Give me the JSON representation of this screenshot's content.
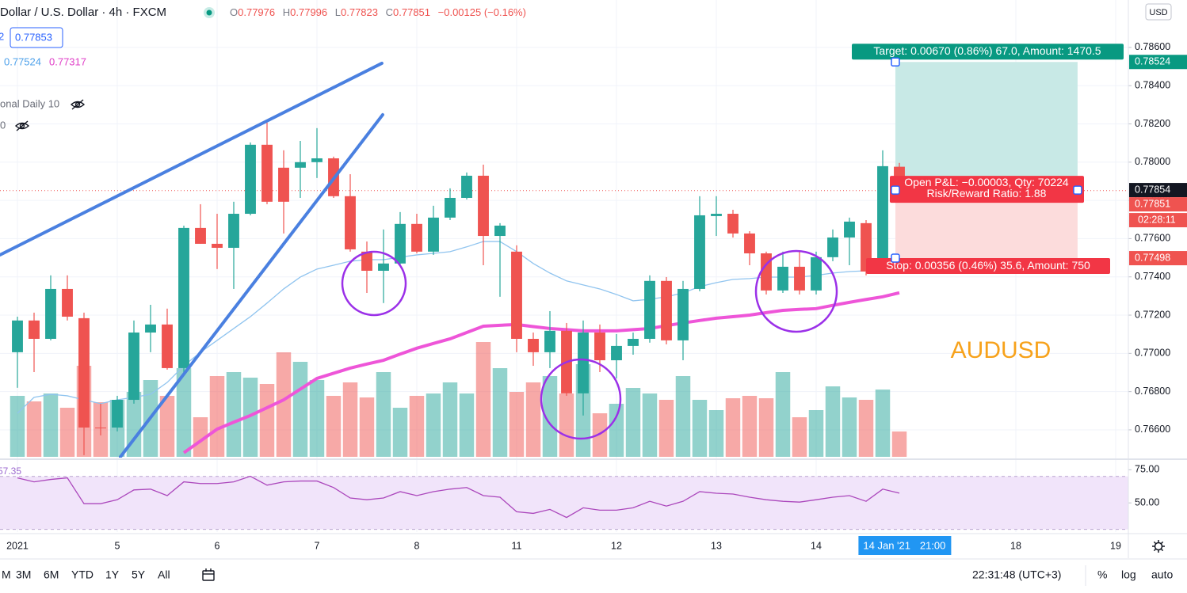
{
  "header": {
    "symbol": "Dollar / U.S. Dollar · 4h · FXCM",
    "ohlc_keys": [
      "O",
      "H",
      "L",
      "C"
    ],
    "change": "−0.00125 (−0.16%)"
  },
  "legend": {
    "prefix": "2",
    "price_box": "0.77853",
    "ma_value": "0.77524",
    "study_1": "onal Daily 10",
    "study_2": "0"
  },
  "chart_data": [
    {
      "type": "candlestick",
      "title": "AUDUSD",
      "currency": "USD",
      "up_color": "#26a69a",
      "down_color": "#ef5350",
      "xlim": [
        -1.0476,
        66.762
      ],
      "xticks": [
        {
          "value": 0,
          "label": "2021"
        },
        {
          "value": 6,
          "label": "5"
        },
        {
          "value": 12,
          "label": "6"
        },
        {
          "value": 18,
          "label": "7"
        },
        {
          "value": 24,
          "label": "8"
        },
        {
          "value": 30,
          "label": "11"
        },
        {
          "value": 36,
          "label": "12"
        },
        {
          "value": 42,
          "label": "13"
        },
        {
          "value": 48,
          "label": "14"
        },
        {
          "value": 60,
          "label": "18"
        },
        {
          "value": 66,
          "label": "19"
        }
      ],
      "ylim": [
        0.76459,
        0.78848
      ],
      "yticks": [
        {
          "value": 0.766,
          "label": "0.76600"
        },
        {
          "value": 0.768,
          "label": "0.76800"
        },
        {
          "value": 0.77,
          "label": "0.77000"
        },
        {
          "value": 0.772,
          "label": "0.77200"
        },
        {
          "value": 0.774,
          "label": "0.77400"
        },
        {
          "value": 0.776,
          "label": "0.77600"
        },
        {
          "value": 0.778,
          "label": "0.77800"
        },
        {
          "value": 0.78,
          "label": "0.78000"
        },
        {
          "value": 0.782,
          "label": "0.78200"
        },
        {
          "value": 0.784,
          "label": "0.78400"
        },
        {
          "value": 0.786,
          "label": "0.78600"
        }
      ],
      "grid": true,
      "open": [
        0.77006,
        0.77172,
        0.77076,
        0.77337,
        0.77184,
        0.76612,
        0.76612,
        0.76757,
        0.77109,
        0.77151,
        0.76923,
        0.77656,
        0.77573,
        0.77552,
        0.7773,
        0.78091,
        0.77971,
        0.77971,
        0.78,
        0.7802,
        0.77822,
        0.77532,
        0.77432,
        0.7747,
        0.77677,
        0.77532,
        0.7771,
        0.77813,
        0.77929,
        0.77614,
        0.77532,
        0.77076,
        0.77006,
        0.77118,
        0.76791,
        0.77109,
        0.76964,
        0.77039,
        0.77076,
        0.77379,
        0.77068,
        0.77337,
        0.77718,
        0.7773,
        0.77627,
        0.77523,
        0.77329,
        0.77453,
        0.77329,
        0.77503,
        0.77606,
        0.77681,
        0.77428,
        0.77976
      ],
      "high": [
        0.77192,
        0.77213,
        0.77408,
        0.77408,
        0.77213,
        0.76737,
        0.76778,
        0.77172,
        0.77254,
        0.77234,
        0.77668,
        0.7778,
        0.7773,
        0.77793,
        0.78103,
        0.78207,
        0.78062,
        0.78111,
        0.78178,
        0.78029,
        0.77937,
        0.77585,
        0.77648,
        0.77739,
        0.7773,
        0.77772,
        0.77863,
        0.77946,
        0.77987,
        0.77681,
        0.77565,
        0.77109,
        0.77221,
        0.77159,
        0.77172,
        0.77151,
        0.77101,
        0.77109,
        0.77408,
        0.77399,
        0.77379,
        0.77822,
        0.77822,
        0.77751,
        0.77639,
        0.77532,
        0.77532,
        0.77532,
        0.77532,
        0.77648,
        0.7771,
        0.77697,
        0.78062,
        0.77996
      ],
      "low": [
        0.7682,
        0.76902,
        0.77068,
        0.77172,
        0.76468,
        0.76571,
        0.76592,
        0.76737,
        0.77006,
        0.76915,
        0.76902,
        0.77573,
        0.77441,
        0.77337,
        0.77722,
        0.7778,
        0.77627,
        0.77813,
        0.77917,
        0.77813,
        0.77532,
        0.77316,
        0.77263,
        0.77461,
        0.77523,
        0.77515,
        0.77697,
        0.77805,
        0.77461,
        0.77296,
        0.77006,
        0.76935,
        0.76923,
        0.76778,
        0.76675,
        0.76902,
        0.76869,
        0.76993,
        0.77056,
        0.77047,
        0.76964,
        0.77325,
        0.77614,
        0.77606,
        0.77461,
        0.77308,
        0.77316,
        0.77308,
        0.77308,
        0.77482,
        0.77461,
        0.77408,
        0.7742,
        0.77823
      ],
      "close": [
        0.77172,
        0.77076,
        0.77337,
        0.77192,
        0.76612,
        0.76608,
        0.76757,
        0.77109,
        0.77151,
        0.76923,
        0.77656,
        0.77573,
        0.77552,
        0.7773,
        0.78091,
        0.77793,
        0.77793,
        0.78,
        0.7802,
        0.77822,
        0.77544,
        0.77432,
        0.7747,
        0.77677,
        0.77532,
        0.7771,
        0.77813,
        0.77929,
        0.77614,
        0.77668,
        0.77076,
        0.77006,
        0.77118,
        0.76791,
        0.77109,
        0.76964,
        0.77039,
        0.77076,
        0.77379,
        0.77068,
        0.77337,
        0.77722,
        0.7773,
        0.77627,
        0.77523,
        0.77329,
        0.77453,
        0.77329,
        0.77503,
        0.77606,
        0.77689,
        0.77428,
        0.77979,
        0.77851
      ],
      "volume": [
        77,
        70,
        80,
        62,
        115,
        69,
        72,
        82,
        97,
        77,
        112,
        50,
        102,
        107,
        100,
        92,
        132,
        120,
        97,
        77,
        94,
        75,
        107,
        62,
        77,
        80,
        94,
        80,
        145,
        112,
        82,
        94,
        102,
        80,
        117,
        55,
        67,
        87,
        80,
        72,
        102,
        72,
        59,
        74,
        77,
        74,
        107,
        50,
        59,
        89,
        75,
        72,
        85,
        32
      ],
      "volume_lim": [
        0,
        577
      ],
      "lines": [
        {
          "color": "#90c4ef",
          "width": 1.3,
          "values": [
            0.76687,
            0.7677,
            0.76786,
            0.76778,
            0.76757,
            0.76737,
            0.76757,
            0.7677,
            0.76786,
            0.76848,
            0.76935,
            0.77006,
            0.77068,
            0.7713,
            0.77192,
            0.77263,
            0.77337,
            0.77399,
            0.77441,
            0.77461,
            0.77482,
            0.7749,
            0.7749,
            0.77503,
            0.77515,
            0.77523,
            0.77532,
            0.77557,
            0.77585,
            0.77585,
            0.77532,
            0.7747,
            0.7742,
            0.77379,
            0.77358,
            0.77337,
            0.77308,
            0.77275,
            0.77283,
            0.77296,
            0.77316,
            0.77349,
            0.7737,
            0.77387,
            0.77391,
            0.77399,
            0.77399,
            0.77399,
            0.77408,
            0.7742,
            0.77428,
            0.77432,
            0.77441,
            0.77441
          ]
        },
        {
          "color": "#ee55d8",
          "width": 4,
          "values": [
            null,
            null,
            null,
            null,
            null,
            null,
            null,
            null,
            null,
            null,
            0.7648,
            0.76542,
            0.76604,
            0.7664,
            0.76675,
            0.76716,
            0.76757,
            0.76813,
            0.76869,
            0.76896,
            0.76923,
            0.76944,
            0.76964,
            0.76996,
            0.77027,
            0.77052,
            0.77076,
            0.77109,
            0.77142,
            0.77147,
            0.77151,
            0.7714,
            0.7713,
            0.77124,
            0.77118,
            0.77118,
            0.77118,
            0.77124,
            0.7713,
            0.77145,
            0.77159,
            0.77172,
            0.77184,
            0.77192,
            0.772,
            0.77213,
            0.77225,
            0.7723,
            0.77234,
            0.77251,
            0.77267,
            0.77282,
            0.77296,
            0.77317
          ]
        }
      ],
      "trendlines": {
        "color": "#4a80e0",
        "lines": [
          {
            "x": [
              -1.05,
              21.9
            ],
            "y": [
              0.77515,
              0.78517
            ]
          },
          {
            "x": [
              6.19,
              21.95
            ],
            "y": [
              0.76459,
              0.78248
            ]
          }
        ]
      },
      "position": {
        "entry": 0.77854,
        "target": 0.78524,
        "stop": 0.77498,
        "xrange": [
          52.76,
          63.71
        ],
        "target_label": "Target: 0.00670 (0.86%) 67.0, Amount: 1470.5",
        "pnl_label": "Open P&L: −0.00003, Qty: 70224",
        "ratio_label": "Risk/Reward Ratio: 1.88",
        "stop_label": "Stop: 0.00356 (0.46%) 35.6, Amount: 750"
      },
      "crosshair": {
        "value": 0.77854,
        "date": "14 Jan '21",
        "time": "21:00"
      },
      "countdown": "02:28:11"
    },
    {
      "type": "line",
      "color": "#ab47bc",
      "band": [
        30,
        70
      ],
      "band_color": "#f1e4fa",
      "ylim": [
        28,
        80
      ],
      "yticks": [
        {
          "value": 50,
          "label": "50.00"
        },
        {
          "value": 75,
          "label": "75.00"
        }
      ],
      "series": [
        {
          "color": "#ab47bc",
          "values": [
            68.9,
            65.9,
            67.7,
            68.9,
            49.4,
            49.4,
            52.4,
            59.8,
            60.4,
            55.5,
            65.9,
            64.6,
            64.6,
            65.9,
            70.1,
            63.4,
            65.9,
            66.5,
            66.5,
            61.6,
            53.7,
            52.4,
            53.7,
            58.5,
            55.5,
            58.5,
            60.4,
            61.6,
            55.5,
            54.3,
            43.3,
            42.1,
            45.1,
            39.0,
            46.3,
            44.5,
            44.5,
            46.3,
            51.2,
            47.6,
            51.2,
            58.5,
            57.3,
            56.7,
            54.3,
            52.4,
            51.2,
            50.6,
            52.4,
            54.3,
            55.5,
            51.2,
            60.4,
            57.35
          ]
        }
      ]
    }
  ],
  "toolbar": {
    "ranges": [
      "M",
      "3M",
      "6M",
      "YTD",
      "1Y",
      "5Y",
      "All"
    ],
    "clock": "22:31:48 (UTC+3)",
    "percent": "%",
    "log": "log",
    "auto": "auto"
  }
}
